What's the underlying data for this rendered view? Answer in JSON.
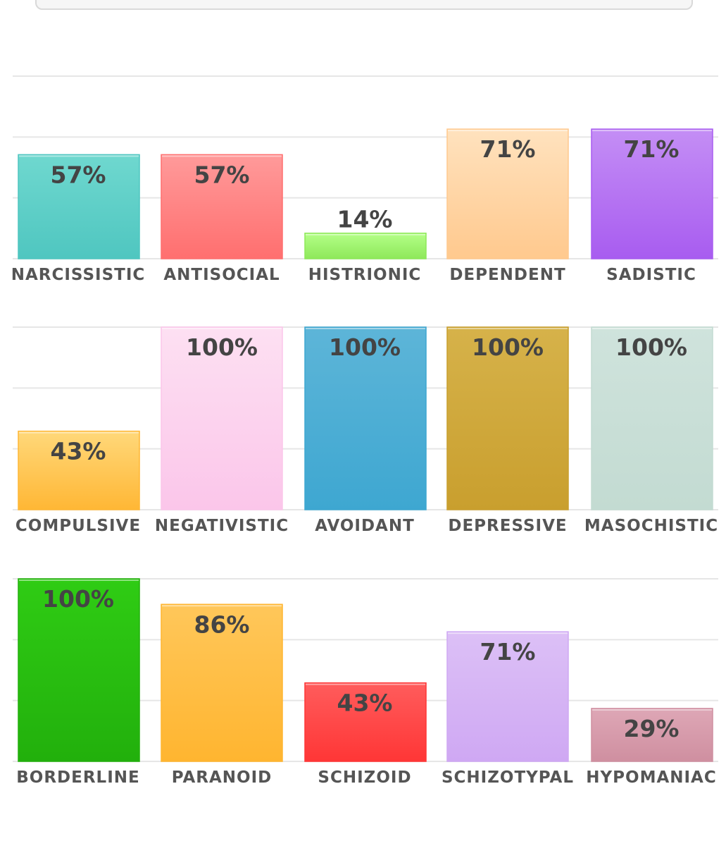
{
  "chart_data": [
    {
      "type": "bar",
      "categories": [
        "NARCISSISTIC",
        "ANTISOCIAL",
        "HISTRIONIC",
        "DEPENDENT",
        "SADISTIC"
      ],
      "values": [
        57,
        57,
        14,
        71,
        71
      ],
      "value_labels": [
        "57%",
        "57%",
        "14%",
        "71%",
        "71%"
      ],
      "colors": [
        [
          "#6fd8cf",
          "#4fc6c0"
        ],
        [
          "#ff9a9a",
          "#ff6f6f"
        ],
        [
          "#b4ff88",
          "#8ee85a"
        ],
        [
          "#ffe2be",
          "#ffc98e"
        ],
        [
          "#c48ef5",
          "#a85cf0"
        ]
      ],
      "ylim": [
        0,
        100
      ],
      "grid": true
    },
    {
      "type": "bar",
      "categories": [
        "COMPULSIVE",
        "NEGATIVISTIC",
        "AVOIDANT",
        "DEPRESSIVE",
        "MASOCHISTIC"
      ],
      "values": [
        43,
        100,
        100,
        100,
        100
      ],
      "value_labels": [
        "43%",
        "100%",
        "100%",
        "100%",
        "100%"
      ],
      "colors": [
        [
          "#ffd87a",
          "#ffb735"
        ],
        [
          "#fde0f2",
          "#fbc6ea"
        ],
        [
          "#5db5d8",
          "#3ea7d1"
        ],
        [
          "#d6b24a",
          "#c99f2e"
        ],
        [
          "#cfe3dc",
          "#c3dbd2"
        ]
      ],
      "ylim": [
        0,
        100
      ],
      "grid": true
    },
    {
      "type": "bar",
      "categories": [
        "BORDERLINE",
        "PARANOID",
        "SCHIZOID",
        "SCHIZOTYPAL",
        "HYPOMANIAC"
      ],
      "values": [
        100,
        86,
        43,
        71,
        29
      ],
      "value_labels": [
        "100%",
        "86%",
        "43%",
        "71%",
        "29%"
      ],
      "colors": [
        [
          "#2fcc14",
          "#22b00c"
        ],
        [
          "#ffc75a",
          "#ffb530"
        ],
        [
          "#ff5c5c",
          "#ff3636"
        ],
        [
          "#dcc0f6",
          "#cfa8f3"
        ],
        [
          "#dea7b6",
          "#cf8fa0"
        ]
      ],
      "ylim": [
        0,
        100
      ],
      "grid": true
    }
  ]
}
